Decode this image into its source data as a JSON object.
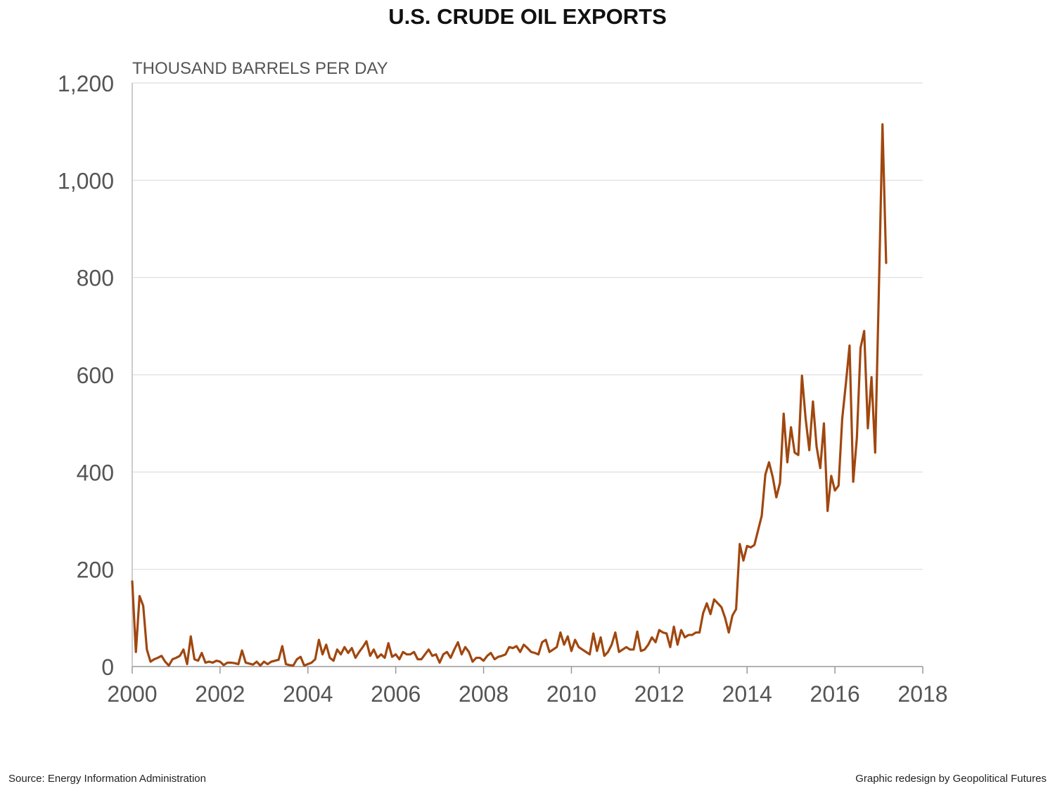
{
  "title": "U.S. CRUDE OIL EXPORTS",
  "source": "Source: Energy Information Administration",
  "credit": "Graphic redesign by Geopolitical Futures",
  "colors": {
    "line": "#A0470F",
    "grid": "#dddddd",
    "axis_text": "#555555"
  },
  "chart_data": {
    "type": "line",
    "title": "U.S. CRUDE OIL EXPORTS",
    "ylabel": "THOUSAND BARRELS PER DAY",
    "xlabel": "",
    "xlim": [
      2000,
      2018
    ],
    "ylim": [
      0,
      1200
    ],
    "x_ticks": [
      2000,
      2002,
      2004,
      2006,
      2008,
      2010,
      2012,
      2014,
      2016,
      2018
    ],
    "x_tick_labels": [
      "2000",
      "2002",
      "2004",
      "2006",
      "2008",
      "2010",
      "2012",
      "2014",
      "2016",
      "2018"
    ],
    "y_ticks": [
      0,
      200,
      400,
      600,
      800,
      1000,
      1200
    ],
    "y_tick_labels": [
      "0",
      "200",
      "400",
      "600",
      "800",
      "1,000",
      "1,200"
    ],
    "grid": "horizontal",
    "x_start": 2000.0,
    "x_step": 0.08333,
    "series": [
      {
        "name": "",
        "values": [
          175,
          30,
          145,
          125,
          35,
          10,
          15,
          18,
          22,
          10,
          2,
          15,
          18,
          22,
          35,
          5,
          62,
          15,
          12,
          28,
          8,
          10,
          8,
          12,
          10,
          3,
          8,
          8,
          7,
          5,
          33,
          8,
          6,
          4,
          10,
          2,
          10,
          5,
          10,
          12,
          14,
          42,
          5,
          3,
          2,
          15,
          20,
          2,
          5,
          8,
          15,
          55,
          25,
          45,
          18,
          12,
          35,
          25,
          40,
          28,
          38,
          18,
          30,
          40,
          52,
          22,
          35,
          18,
          25,
          18,
          48,
          20,
          25,
          15,
          30,
          25,
          25,
          30,
          15,
          15,
          25,
          35,
          22,
          25,
          8,
          25,
          30,
          18,
          35,
          50,
          25,
          40,
          30,
          10,
          18,
          18,
          12,
          22,
          28,
          15,
          20,
          22,
          25,
          40,
          38,
          42,
          30,
          45,
          38,
          30,
          28,
          25,
          50,
          55,
          30,
          35,
          40,
          70,
          45,
          62,
          32,
          55,
          40,
          35,
          30,
          25,
          68,
          32,
          60,
          22,
          30,
          45,
          70,
          30,
          35,
          40,
          35,
          35,
          72,
          32,
          35,
          45,
          60,
          50,
          75,
          70,
          68,
          40,
          82,
          45,
          75,
          60,
          65,
          65,
          70,
          70,
          110,
          130,
          108,
          138,
          130,
          122,
          100,
          70,
          105,
          118,
          252,
          218,
          248,
          245,
          250,
          280,
          310,
          395,
          420,
          390,
          348,
          378,
          520,
          420,
          492,
          440,
          435,
          598,
          510,
          445,
          545,
          452,
          408,
          500,
          320,
          392,
          362,
          372,
          510,
          582,
          660,
          380,
          470,
          655,
          690,
          490,
          595,
          440,
          770,
          1115,
          830
        ]
      }
    ]
  }
}
